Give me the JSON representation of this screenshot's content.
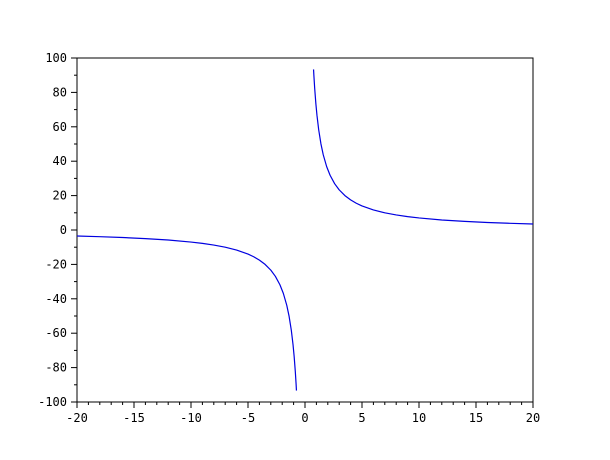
{
  "figure": {
    "background_color": "#ffffff",
    "axis_color": "#000000",
    "tick_label_color": "#000000"
  },
  "chart_data": {
    "type": "line",
    "title": "",
    "xlabel": "",
    "ylabel": "",
    "xlim": [
      -20,
      20
    ],
    "ylim": [
      -100,
      100
    ],
    "grid": false,
    "legend": null,
    "line_color": "#0000e0",
    "line_width": 1.2,
    "x_tick_labels": [
      "-20",
      "-15",
      "-10",
      "-5",
      "0",
      "5",
      "10",
      "15",
      "20"
    ],
    "x_major_ticks": [
      -20,
      -15,
      -10,
      -5,
      0,
      5,
      10,
      15,
      20
    ],
    "x_minor_step": 1,
    "y_tick_labels": [
      "-100",
      "-80",
      "-60",
      "-40",
      "-20",
      "0",
      "20",
      "40",
      "60",
      "80",
      "100"
    ],
    "y_major_ticks": [
      -100,
      -80,
      -60,
      -40,
      -20,
      0,
      20,
      40,
      60,
      80,
      100
    ],
    "y_minor_step": 10,
    "description": "Hyperbola y = 70/x with vertical asymptote at x = 0 and horizontal asymptote y = 0; two disconnected branches",
    "series": [
      {
        "name": "branch-negative",
        "points": [
          [
            -20,
            -3.5
          ],
          [
            -18,
            -3.89
          ],
          [
            -16,
            -4.38
          ],
          [
            -14,
            -5.0
          ],
          [
            -12,
            -5.83
          ],
          [
            -10,
            -7.0
          ],
          [
            -9,
            -7.78
          ],
          [
            -8,
            -8.75
          ],
          [
            -7,
            -10.0
          ],
          [
            -6,
            -11.67
          ],
          [
            -5,
            -14.0
          ],
          [
            -4.5,
            -15.56
          ],
          [
            -4,
            -17.5
          ],
          [
            -3.5,
            -20.0
          ],
          [
            -3,
            -23.33
          ],
          [
            -2.6,
            -26.92
          ],
          [
            -2.2,
            -31.82
          ],
          [
            -1.9,
            -36.84
          ],
          [
            -1.6,
            -43.75
          ],
          [
            -1.4,
            -50.0
          ],
          [
            -1.2,
            -58.33
          ],
          [
            -1.05,
            -66.67
          ],
          [
            -0.95,
            -73.68
          ],
          [
            -0.85,
            -82.35
          ],
          [
            -0.78,
            -89.74
          ],
          [
            -0.75,
            -93.33
          ]
        ]
      },
      {
        "name": "branch-positive",
        "points": [
          [
            0.75,
            93.33
          ],
          [
            0.78,
            89.74
          ],
          [
            0.85,
            82.35
          ],
          [
            0.95,
            73.68
          ],
          [
            1.05,
            66.67
          ],
          [
            1.2,
            58.33
          ],
          [
            1.4,
            50.0
          ],
          [
            1.6,
            43.75
          ],
          [
            1.9,
            36.84
          ],
          [
            2.2,
            31.82
          ],
          [
            2.6,
            26.92
          ],
          [
            3,
            23.33
          ],
          [
            3.5,
            20.0
          ],
          [
            4,
            17.5
          ],
          [
            4.5,
            15.56
          ],
          [
            5,
            14.0
          ],
          [
            6,
            11.67
          ],
          [
            7,
            10.0
          ],
          [
            8,
            8.75
          ],
          [
            9,
            7.78
          ],
          [
            10,
            7.0
          ],
          [
            12,
            5.83
          ],
          [
            14,
            5.0
          ],
          [
            16,
            4.38
          ],
          [
            18,
            3.89
          ],
          [
            20,
            3.5
          ]
        ]
      }
    ]
  }
}
